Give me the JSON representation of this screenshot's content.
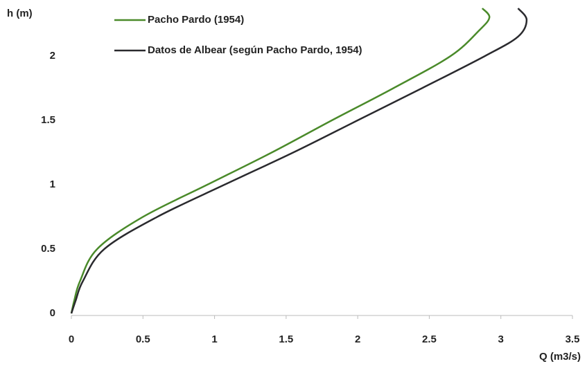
{
  "chart_data": {
    "type": "line",
    "xlabel": "Q (m3/s)",
    "ylabel": "h (m)",
    "xlim": [
      0,
      3.5
    ],
    "ylim": [
      0,
      2.37
    ],
    "xticks": [
      0,
      0.5,
      1,
      1.5,
      2,
      2.5,
      3,
      3.5
    ],
    "yticks": [
      0,
      0.5,
      1,
      1.5,
      2
    ],
    "grid": false,
    "legend": "top-left",
    "series": [
      {
        "name": "Pacho Pardo (1954)",
        "color": "#4a8a2a",
        "x": [
          0,
          0.02,
          0.06,
          0.18,
          0.5,
          0.95,
          1.4,
          1.82,
          2.25,
          2.65,
          2.85,
          2.92,
          2.87
        ],
        "values": [
          0,
          0.1,
          0.25,
          0.5,
          0.75,
          1.0,
          1.25,
          1.5,
          1.75,
          2.0,
          2.2,
          2.3,
          2.37
        ]
      },
      {
        "name": "Datos de Albear (según Pacho Pardo, 1954)",
        "color": "#2a2a2e",
        "x": [
          0,
          0.03,
          0.08,
          0.23,
          0.6,
          1.07,
          1.55,
          2.0,
          2.45,
          2.89,
          3.12,
          3.18,
          3.12
        ],
        "values": [
          0,
          0.1,
          0.25,
          0.5,
          0.75,
          1.0,
          1.25,
          1.5,
          1.75,
          2.0,
          2.15,
          2.28,
          2.37
        ]
      }
    ]
  }
}
